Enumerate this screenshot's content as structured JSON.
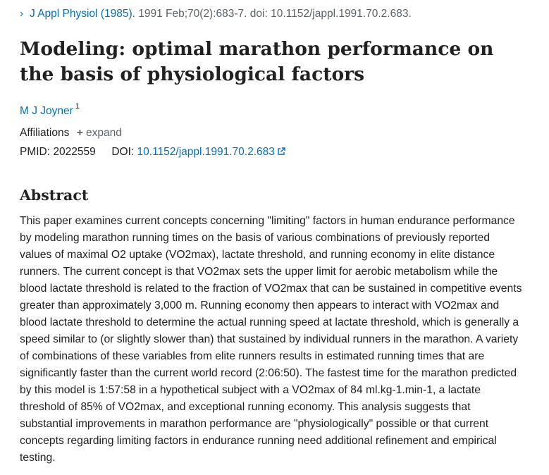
{
  "citation": {
    "journal": "J Appl Physiol (1985).",
    "details": "1991 Feb;70(2):683-7. doi: 10.1152/jappl.1991.70.2.683."
  },
  "title": "Modeling: optimal marathon performance on the basis of physiological factors",
  "authors": [
    {
      "name": "M J Joyner",
      "affiliation_ref": "1"
    }
  ],
  "affiliations": {
    "label": "Affiliations",
    "expand_label": "expand"
  },
  "identifiers": {
    "pmid_label": "PMID:",
    "pmid": "2022559",
    "doi_label": "DOI:",
    "doi": "10.1152/jappl.1991.70.2.683"
  },
  "abstract": {
    "heading": "Abstract",
    "text": "This paper examines current concepts concerning \"limiting\" factors in human endurance performance by modeling marathon running times on the basis of various combinations of previously reported values of maximal O2 uptake (VO2max), lactate threshold, and running economy in elite distance runners. The current concept is that VO2max sets the upper limit for aerobic metabolism while the blood lactate threshold is related to the fraction of VO2max that can be sustained in competitive events greater than approximately 3,000 m. Running economy then appears to interact with VO2max and blood lactate threshold to determine the actual running speed at lactate threshold, which is generally a speed similar to (or slightly slower than) that sustained by individual runners in the marathon. A variety of combinations of these variables from elite runners results in estimated running times that are significantly faster than the current world record (2:06:50). The fastest time for the marathon predicted by this model is 1:57:58 in a hypothetical subject with a VO2max of 84 ml.kg-1.min-1, a lactate threshold of 85% of VO2max, and exceptional running economy. This analysis suggests that substantial improvements in marathon performance are \"physiologically\" possible or that current concepts regarding limiting factors in endurance running need additional refinement and empirical testing."
  },
  "icons": {
    "breadcrumb": "chevron-right-icon",
    "expand": "plus-icon",
    "external": "external-link-icon"
  },
  "colors": {
    "link": "#0071bc",
    "text": "#212121",
    "muted": "#5b616b"
  }
}
